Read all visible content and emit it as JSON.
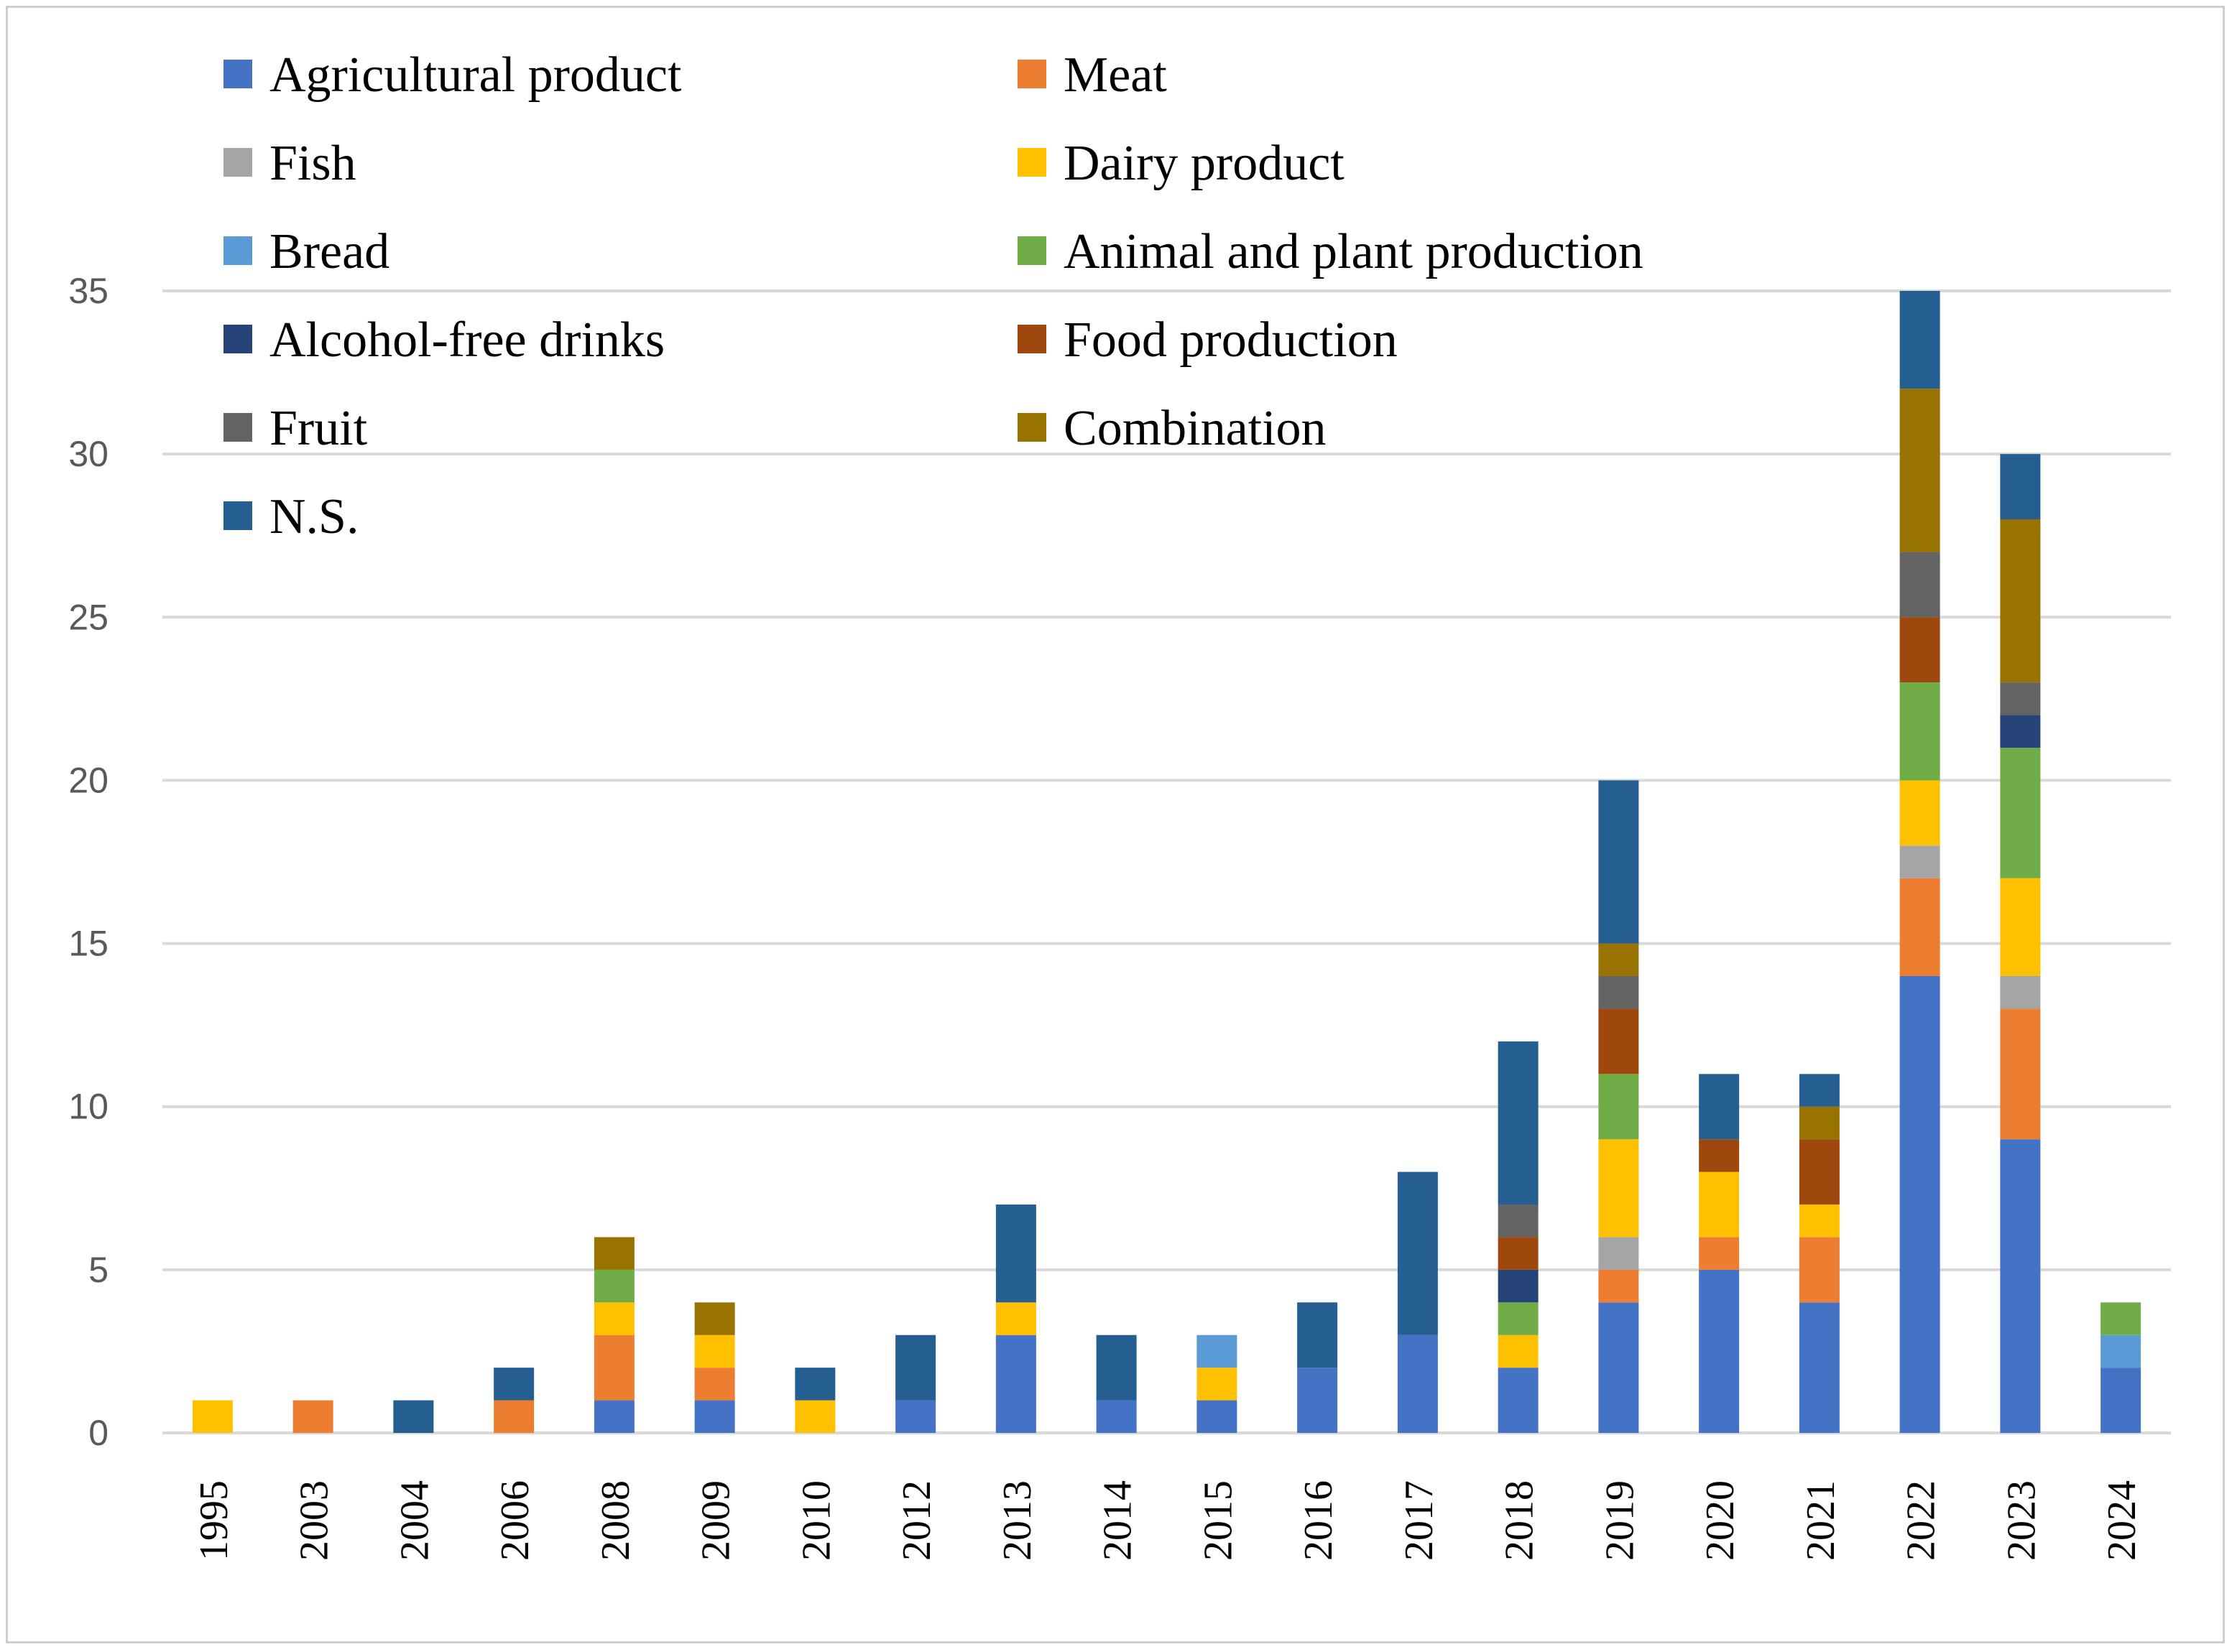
{
  "chart_data": {
    "type": "bar",
    "stacked": true,
    "title": "",
    "xlabel": "",
    "ylabel": "",
    "ylim": [
      0,
      35
    ],
    "yticks": [
      0,
      5,
      10,
      15,
      20,
      25,
      30,
      35
    ],
    "grid": true,
    "legend_position": "top-left",
    "categories": [
      "1995",
      "2003",
      "2004",
      "2006",
      "2008",
      "2009",
      "2010",
      "2012",
      "2013",
      "2014",
      "2015",
      "2016",
      "2017",
      "2018",
      "2019",
      "2020",
      "2021",
      "2022",
      "2023",
      "2024"
    ],
    "series": [
      {
        "name": "Agricultural product",
        "color": "#4472C4",
        "values": [
          0,
          0,
          0,
          0,
          1,
          1,
          0,
          1,
          3,
          1,
          1,
          2,
          3,
          2,
          4,
          5,
          4,
          14,
          9,
          2
        ]
      },
      {
        "name": "Meat",
        "color": "#ED7D31",
        "values": [
          0,
          1,
          0,
          1,
          2,
          1,
          0,
          0,
          0,
          0,
          0,
          0,
          0,
          0,
          1,
          1,
          2,
          3,
          4,
          0
        ]
      },
      {
        "name": "Fish",
        "color": "#A5A5A5",
        "values": [
          0,
          0,
          0,
          0,
          0,
          0,
          0,
          0,
          0,
          0,
          0,
          0,
          0,
          0,
          1,
          0,
          0,
          1,
          1,
          0
        ]
      },
      {
        "name": "Dairy product",
        "color": "#FFC000",
        "values": [
          1,
          0,
          0,
          0,
          1,
          1,
          1,
          0,
          1,
          0,
          1,
          0,
          0,
          1,
          3,
          2,
          1,
          2,
          3,
          0
        ]
      },
      {
        "name": "Bread",
        "color": "#5B9BD5",
        "values": [
          0,
          0,
          0,
          0,
          0,
          0,
          0,
          0,
          0,
          0,
          1,
          0,
          0,
          0,
          0,
          0,
          0,
          0,
          0,
          1
        ]
      },
      {
        "name": "Animal and plant production",
        "color": "#70AD47",
        "values": [
          0,
          0,
          0,
          0,
          1,
          0,
          0,
          0,
          0,
          0,
          0,
          0,
          0,
          1,
          2,
          0,
          0,
          3,
          4,
          1
        ]
      },
      {
        "name": "Alcohol-free drinks",
        "color": "#264478",
        "values": [
          0,
          0,
          0,
          0,
          0,
          0,
          0,
          0,
          0,
          0,
          0,
          0,
          0,
          1,
          0,
          0,
          0,
          0,
          1,
          0
        ]
      },
      {
        "name": "Food production",
        "color": "#9E480E",
        "values": [
          0,
          0,
          0,
          0,
          0,
          0,
          0,
          0,
          0,
          0,
          0,
          0,
          0,
          1,
          2,
          1,
          2,
          2,
          0,
          0
        ]
      },
      {
        "name": "Fruit",
        "color": "#636363",
        "values": [
          0,
          0,
          0,
          0,
          0,
          0,
          0,
          0,
          0,
          0,
          0,
          0,
          0,
          1,
          1,
          0,
          0,
          2,
          1,
          0
        ]
      },
      {
        "name": "Combination",
        "color": "#997300",
        "values": [
          0,
          0,
          0,
          0,
          1,
          1,
          0,
          0,
          0,
          0,
          0,
          0,
          0,
          0,
          1,
          0,
          1,
          5,
          5,
          0
        ]
      },
      {
        "name": "N.S.",
        "color": "#255E91",
        "values": [
          0,
          0,
          1,
          1,
          0,
          0,
          1,
          2,
          3,
          2,
          0,
          2,
          5,
          5,
          5,
          2,
          1,
          3,
          2,
          0
        ]
      }
    ]
  }
}
